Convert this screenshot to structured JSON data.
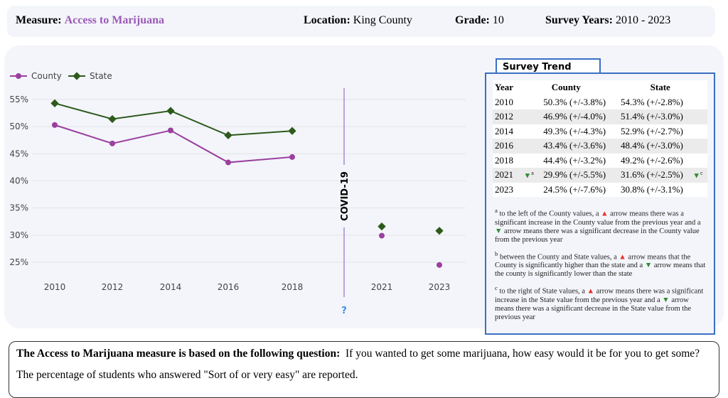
{
  "header": {
    "measure_label": "Measure:",
    "measure": "Access to Marijuana",
    "location_label": "Location:",
    "location": "King County",
    "grade_label": "Grade:",
    "grade": "10",
    "years_label": "Survey Years:",
    "years": "2010 - 2023"
  },
  "chart_data": {
    "type": "line",
    "categories": [
      "2010",
      "2012",
      "2014",
      "2016",
      "2018",
      "2021",
      "2023"
    ],
    "series": [
      {
        "name": "County",
        "color": "#9b3fa0",
        "values": [
          50.3,
          46.9,
          49.3,
          43.4,
          44.4,
          29.9,
          24.5
        ]
      },
      {
        "name": "State",
        "color": "#2d5a1b",
        "values": [
          54.3,
          51.4,
          52.9,
          48.4,
          49.2,
          31.6,
          30.8
        ]
      }
    ],
    "yticks": [
      "25%",
      "30%",
      "35%",
      "40%",
      "45%",
      "50%",
      "55%"
    ],
    "ylim": [
      23,
      57
    ],
    "grid": true,
    "legend": "top-left",
    "annotation": "COVID-19",
    "annotation_help": "?"
  },
  "trend": {
    "title": "Survey Trend",
    "headers": [
      "Year",
      "County",
      "State"
    ],
    "rows": [
      [
        "2010",
        "",
        "50.3% (+/-3.8%)",
        "54.3% (+/-2.8%)",
        ""
      ],
      [
        "2012",
        "",
        "46.9% (+/-4.0%)",
        "51.4% (+/-3.0%)",
        ""
      ],
      [
        "2014",
        "",
        "49.3% (+/-4.3%)",
        "52.9% (+/-2.7%)",
        ""
      ],
      [
        "2016",
        "",
        "43.4% (+/-3.6%)",
        "48.4% (+/-3.0%)",
        ""
      ],
      [
        "2018",
        "",
        "44.4% (+/-3.2%)",
        "49.2% (+/-2.6%)",
        ""
      ],
      [
        "2021",
        "▼a",
        "29.9% (+/-5.5%)",
        "31.6% (+/-2.5%)",
        "▼c"
      ],
      [
        "2023",
        "",
        "24.5% (+/-7.6%)",
        "30.8% (+/-3.1%)",
        ""
      ]
    ],
    "notes": [
      {
        "sup": "a",
        "t1": " to the left of the County values, a ",
        "t2": " arrow means there was a significant increase in the County value from the previous year and a ",
        "t3": " arrow means there was a significant decrease in the County value from the previous year"
      },
      {
        "sup": "b",
        "t1": " between the County and State values, a ",
        "t2": " arrow means that the County is significantly higher than the state and a ",
        "t3": " arrow means that the county is significantly lower than the state"
      },
      {
        "sup": "c",
        "t1": " to the right of State values, a ",
        "t2": " arrow means there was a significant increase in the State value from the previous year and a ",
        "t3": " arrow means there was a significant decrease in the State value from the previous year"
      }
    ],
    "up": "▲",
    "down": "▼"
  },
  "question": {
    "lead": "The Access to Marijuana measure is based on the following question:",
    "text": "If you wanted to get some marijuana, how easy would it be for you to get some?",
    "reported": "The percentage of students who answered \"Sort of or very easy\" are reported."
  }
}
